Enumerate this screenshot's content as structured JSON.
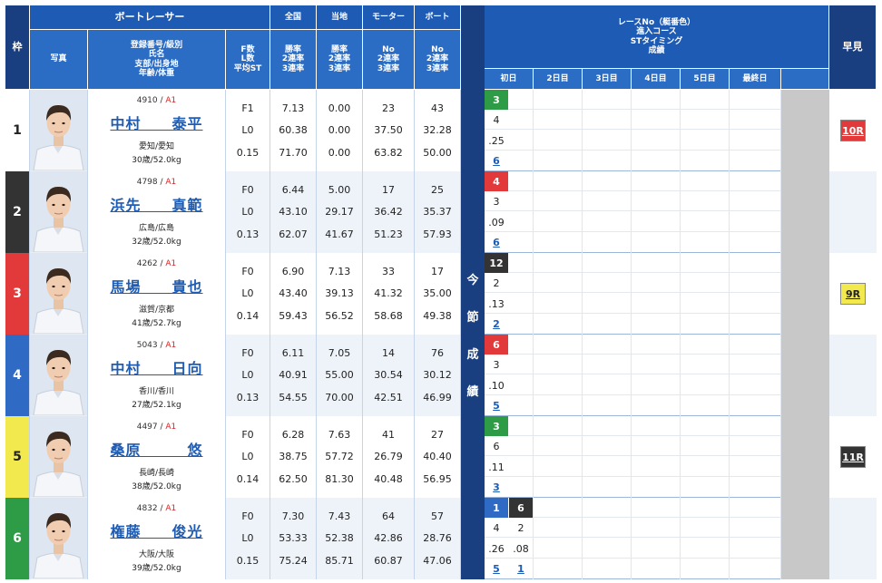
{
  "header": {
    "waku": "枠",
    "photo": "写真",
    "racer_group": "ボートレーサー",
    "racer_sub": [
      "登録番号/級別",
      "氏名",
      "支部/出身地",
      "年齢/体重"
    ],
    "fl_sub": [
      "F数",
      "L数",
      "平均ST"
    ],
    "national": "全国",
    "local": "当地",
    "motor": "モーター",
    "boat": "ボート",
    "rate_sub": [
      "勝率",
      "2連率",
      "3連率"
    ],
    "no_sub": [
      "No",
      "2連率",
      "3連率"
    ],
    "right_title": [
      "レースNo（艇番色）",
      "進入コース",
      "STタイミング",
      "成績"
    ],
    "days": [
      "初日",
      "2日目",
      "3日目",
      "4日目",
      "5日目",
      "最終日"
    ],
    "early": "早見",
    "konsetsu": [
      "今",
      "節",
      "成",
      "績"
    ]
  },
  "lane_colors": [
    "#ffffff",
    "#333333",
    "#e23a3a",
    "#2f6bc4",
    "#f2e94e",
    "#2e9b46"
  ],
  "lane_text_colors": [
    "#222222",
    "#ffffff",
    "#ffffff",
    "#ffffff",
    "#222222",
    "#ffffff"
  ],
  "racers": [
    {
      "waku": "1",
      "reg": "4910",
      "class": "A1",
      "name": "中村　　泰平",
      "pref": "愛知/愛知",
      "age": "30歳/52.0kg",
      "f": "F1",
      "l": "L0",
      "st": "0.15",
      "nat": [
        "7.13",
        "60.38",
        "71.70"
      ],
      "loc": [
        "0.00",
        "0.00",
        "0.00"
      ],
      "motor": [
        "23",
        "37.50",
        "63.82"
      ],
      "boat": [
        "43",
        "32.28",
        "50.00"
      ],
      "results": [
        {
          "lane": "3",
          "course": "4",
          "st": ".25",
          "rank": "6"
        }
      ],
      "early": "10R",
      "early_bg": "#e23a3a",
      "early_fg": "#ffffff"
    },
    {
      "waku": "2",
      "reg": "4798",
      "class": "A1",
      "name": "浜先　　真範",
      "pref": "広島/広島",
      "age": "32歳/52.0kg",
      "f": "F0",
      "l": "L0",
      "st": "0.13",
      "nat": [
        "6.44",
        "43.10",
        "62.07"
      ],
      "loc": [
        "5.00",
        "29.17",
        "41.67"
      ],
      "motor": [
        "17",
        "36.42",
        "51.23"
      ],
      "boat": [
        "25",
        "35.37",
        "57.93"
      ],
      "results": [
        {
          "lane": "4",
          "course": "3",
          "st": ".09",
          "rank": "6"
        }
      ],
      "early": "",
      "early_bg": "",
      "early_fg": ""
    },
    {
      "waku": "3",
      "reg": "4262",
      "class": "A1",
      "name": "馬場　　貴也",
      "pref": "滋賀/京都",
      "age": "41歳/52.7kg",
      "f": "F0",
      "l": "L0",
      "st": "0.14",
      "nat": [
        "6.90",
        "43.40",
        "59.43"
      ],
      "loc": [
        "7.13",
        "39.13",
        "56.52"
      ],
      "motor": [
        "33",
        "41.32",
        "58.68"
      ],
      "boat": [
        "17",
        "35.00",
        "49.38"
      ],
      "results": [
        {
          "lane": "12",
          "course": "2",
          "st": ".13",
          "rank": "2"
        }
      ],
      "early": "9R",
      "early_bg": "#f2e94e",
      "early_fg": "#222222"
    },
    {
      "waku": "4",
      "reg": "5043",
      "class": "A1",
      "name": "中村　　日向",
      "pref": "香川/香川",
      "age": "27歳/52.1kg",
      "f": "F0",
      "l": "L0",
      "st": "0.13",
      "nat": [
        "6.11",
        "40.91",
        "54.55"
      ],
      "loc": [
        "7.05",
        "55.00",
        "70.00"
      ],
      "motor": [
        "14",
        "30.54",
        "42.51"
      ],
      "boat": [
        "76",
        "30.12",
        "46.99"
      ],
      "results": [
        {
          "lane": "6",
          "course": "3",
          "st": ".10",
          "rank": "5"
        }
      ],
      "early": "",
      "early_bg": "",
      "early_fg": ""
    },
    {
      "waku": "5",
      "reg": "4497",
      "class": "A1",
      "name": "桑原　　　悠",
      "pref": "長崎/長崎",
      "age": "38歳/52.0kg",
      "f": "F0",
      "l": "L0",
      "st": "0.14",
      "nat": [
        "6.28",
        "38.75",
        "62.50"
      ],
      "loc": [
        "7.63",
        "57.72",
        "81.30"
      ],
      "motor": [
        "41",
        "26.79",
        "40.48"
      ],
      "boat": [
        "27",
        "40.40",
        "56.95"
      ],
      "results": [
        {
          "lane": "3",
          "course": "6",
          "st": ".11",
          "rank": "3"
        }
      ],
      "early": "11R",
      "early_bg": "#333333",
      "early_fg": "#ffffff"
    },
    {
      "waku": "6",
      "reg": "4832",
      "class": "A1",
      "name": "権藤　　俊光",
      "pref": "大阪/大阪",
      "age": "39歳/52.0kg",
      "f": "F0",
      "l": "L0",
      "st": "0.15",
      "nat": [
        "7.30",
        "53.33",
        "75.24"
      ],
      "loc": [
        "7.43",
        "52.38",
        "85.71"
      ],
      "motor": [
        "64",
        "42.86",
        "60.87"
      ],
      "boat": [
        "57",
        "28.76",
        "47.06"
      ],
      "results": [
        {
          "lane": "1",
          "course": "4",
          "st": ".26",
          "rank": "5"
        },
        {
          "lane": "6",
          "course": "2",
          "st": ".08",
          "rank": "1"
        }
      ],
      "early": "",
      "early_bg": "",
      "early_fg": ""
    }
  ],
  "result_lane_colors": {
    "1": "#2f6bc4",
    "3": "#2e9b46",
    "4": "#e23a3a",
    "6": "#2f6bc4",
    "12": "#333333",
    "6b": "#333333"
  }
}
